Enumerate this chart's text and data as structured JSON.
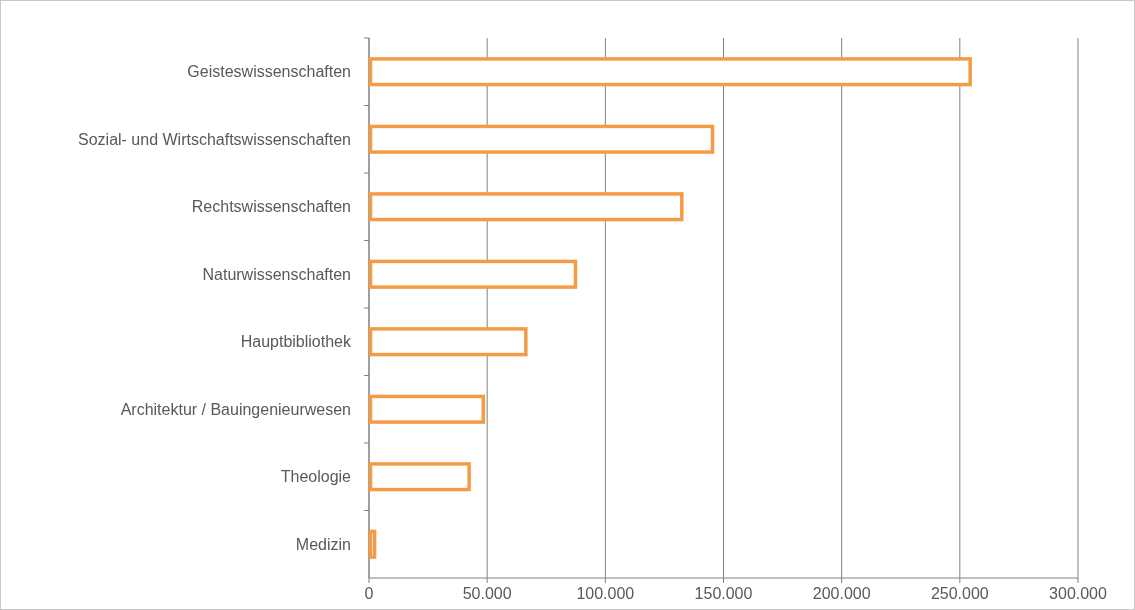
{
  "chart_data": {
    "type": "bar",
    "orientation": "horizontal",
    "categories": [
      "Geisteswissenschaften",
      "Sozial- und Wirtschaftswissenschaften",
      "Rechtswissenschaften",
      "Naturwissenschaften",
      "Hauptbibliothek",
      "Architektur / Bauingenieurwesen",
      "Theologie",
      "Medizin"
    ],
    "values": [
      255000,
      146000,
      133000,
      88000,
      67000,
      49000,
      43000,
      3000
    ],
    "color": "#f59a45",
    "xlim": [
      0,
      300000
    ],
    "xticks": [
      {
        "value": 0,
        "label": "0"
      },
      {
        "value": 50000,
        "label": "50.000"
      },
      {
        "value": 100000,
        "label": "100.000"
      },
      {
        "value": 150000,
        "label": "150.000"
      },
      {
        "value": 200000,
        "label": "200.000"
      },
      {
        "value": 250000,
        "label": "250.000"
      },
      {
        "value": 300000,
        "label": "300.000"
      }
    ],
    "grid": "x"
  }
}
